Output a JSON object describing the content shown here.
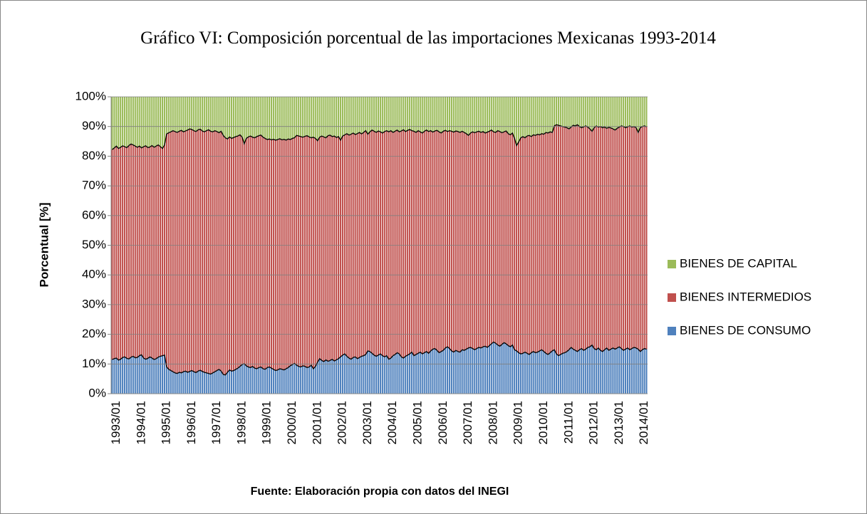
{
  "chart_data": {
    "type": "stacked_bar",
    "title": "Gráfico VI: Composición porcentual de las importaciones Mexicanas 1993-2014",
    "y_label": "Porcentual [%]",
    "x_label": "Fuente: Elaboración propia con datos del INEGI",
    "ylim": [
      0,
      100
    ],
    "yticks": [
      {
        "value": 0,
        "label": "0%"
      },
      {
        "value": 10,
        "label": "10%"
      },
      {
        "value": 20,
        "label": "20%"
      },
      {
        "value": 30,
        "label": "30%"
      },
      {
        "value": 40,
        "label": "40%"
      },
      {
        "value": 50,
        "label": "50%"
      },
      {
        "value": 60,
        "label": "60%"
      },
      {
        "value": 70,
        "label": "70%"
      },
      {
        "value": 80,
        "label": "80%"
      },
      {
        "value": 90,
        "label": "90%"
      },
      {
        "value": 100,
        "label": "100%"
      }
    ],
    "grid": true,
    "legend": "right",
    "categories": [
      "1993/01",
      null,
      null,
      null,
      null,
      null,
      null,
      null,
      null,
      null,
      null,
      null,
      "1994/01",
      null,
      null,
      null,
      null,
      null,
      null,
      null,
      null,
      null,
      null,
      null,
      "1995/01",
      null,
      null,
      null,
      null,
      null,
      null,
      null,
      null,
      null,
      null,
      null,
      "1996/01",
      null,
      null,
      null,
      null,
      null,
      null,
      null,
      null,
      null,
      null,
      null,
      "1997/01",
      null,
      null,
      null,
      null,
      null,
      null,
      null,
      null,
      null,
      null,
      null,
      "1998/01",
      null,
      null,
      null,
      null,
      null,
      null,
      null,
      null,
      null,
      null,
      null,
      "1999/01",
      null,
      null,
      null,
      null,
      null,
      null,
      null,
      null,
      null,
      null,
      null,
      "2000/01",
      null,
      null,
      null,
      null,
      null,
      null,
      null,
      null,
      null,
      null,
      null,
      "2001/01",
      null,
      null,
      null,
      null,
      null,
      null,
      null,
      null,
      null,
      null,
      null,
      "2002/01",
      null,
      null,
      null,
      null,
      null,
      null,
      null,
      null,
      null,
      null,
      null,
      "2003/01",
      null,
      null,
      null,
      null,
      null,
      null,
      null,
      null,
      null,
      null,
      null,
      "2004/01",
      null,
      null,
      null,
      null,
      null,
      null,
      null,
      null,
      null,
      null,
      null,
      "2005/01",
      null,
      null,
      null,
      null,
      null,
      null,
      null,
      null,
      null,
      null,
      null,
      "2006/01",
      null,
      null,
      null,
      null,
      null,
      null,
      null,
      null,
      null,
      null,
      null,
      "2007/01",
      null,
      null,
      null,
      null,
      null,
      null,
      null,
      null,
      null,
      null,
      null,
      "2008/01",
      null,
      null,
      null,
      null,
      null,
      null,
      null,
      null,
      null,
      null,
      null,
      "2009/01",
      null,
      null,
      null,
      null,
      null,
      null,
      null,
      null,
      null,
      null,
      null,
      "2010/01",
      null,
      null,
      null,
      null,
      null,
      null,
      null,
      null,
      null,
      null,
      null,
      "2011/01",
      null,
      null,
      null,
      null,
      null,
      null,
      null,
      null,
      null,
      null,
      null,
      "2012/01",
      null,
      null,
      null,
      null,
      null,
      null,
      null,
      null,
      null,
      null,
      null,
      "2013/01",
      null,
      null,
      null,
      null,
      null,
      null,
      null,
      null,
      null,
      null,
      null,
      "2014/01",
      null,
      null,
      null
    ],
    "series": [
      {
        "name": "BIENES DE CONSUMO",
        "color": "#4f81bd",
        "values": [
          11.5,
          11.8,
          12.0,
          11.3,
          11.6,
          12.2,
          12.4,
          11.9,
          11.7,
          12.3,
          12.6,
          12.1,
          12.2,
          12.8,
          13.1,
          12.0,
          11.6,
          11.9,
          12.4,
          12.0,
          11.5,
          11.8,
          12.3,
          12.6,
          12.8,
          13.0,
          9.0,
          8.2,
          7.8,
          7.4,
          7.0,
          6.8,
          7.2,
          7.0,
          7.4,
          7.6,
          7.2,
          7.5,
          7.8,
          7.4,
          7.1,
          7.6,
          7.9,
          7.5,
          7.2,
          7.0,
          6.8,
          6.6,
          7.0,
          7.4,
          7.8,
          8.2,
          7.6,
          6.5,
          6.3,
          7.2,
          8.0,
          7.6,
          7.8,
          8.2,
          8.6,
          9.2,
          9.8,
          10.1,
          9.4,
          9.0,
          8.8,
          9.2,
          8.6,
          8.4,
          8.8,
          9.0,
          8.4,
          8.2,
          8.8,
          9.0,
          8.6,
          8.2,
          7.8,
          8.0,
          8.4,
          8.2,
          8.0,
          8.4,
          8.8,
          9.4,
          9.8,
          10.2,
          9.6,
          9.2,
          9.0,
          9.4,
          9.2,
          8.8,
          9.0,
          9.6,
          8.4,
          9.2,
          10.6,
          11.8,
          11.2,
          10.8,
          11.4,
          10.9,
          11.2,
          11.6,
          11.0,
          11.4,
          11.8,
          12.4,
          13.0,
          13.4,
          12.6,
          12.0,
          11.6,
          12.2,
          12.4,
          11.8,
          12.2,
          12.6,
          12.8,
          13.2,
          14.4,
          14.2,
          13.6,
          13.0,
          12.6,
          13.0,
          13.4,
          12.8,
          12.4,
          12.8,
          11.6,
          12.0,
          12.8,
          13.2,
          13.8,
          13.4,
          12.4,
          12.0,
          12.6,
          13.0,
          13.4,
          14.0,
          12.8,
          13.2,
          13.6,
          14.0,
          13.4,
          13.8,
          14.2,
          13.6,
          14.4,
          15.0,
          15.2,
          14.6,
          13.8,
          14.2,
          14.6,
          15.4,
          15.8,
          15.2,
          14.4,
          14.0,
          14.6,
          14.2,
          14.0,
          14.8,
          14.6,
          15.0,
          15.4,
          15.6,
          15.2,
          14.8,
          15.2,
          15.6,
          15.4,
          15.8,
          16.0,
          15.6,
          16.2,
          16.8,
          17.4,
          17.0,
          16.4,
          16.0,
          16.6,
          17.2,
          16.8,
          16.2,
          15.8,
          16.4,
          14.8,
          14.4,
          13.8,
          13.4,
          13.6,
          14.0,
          13.6,
          13.2,
          13.8,
          14.2,
          13.8,
          14.0,
          14.4,
          14.8,
          14.2,
          13.6,
          13.2,
          13.8,
          14.4,
          14.8,
          13.4,
          12.8,
          13.2,
          13.6,
          13.8,
          14.2,
          14.8,
          15.6,
          15.0,
          14.6,
          14.2,
          14.8,
          15.2,
          14.6,
          15.0,
          15.6,
          15.8,
          16.4,
          15.2,
          14.8,
          15.4,
          14.6,
          14.2,
          14.8,
          15.4,
          14.6,
          15.0,
          15.4,
          15.0,
          15.4,
          15.8,
          15.2,
          14.6,
          15.0,
          15.4,
          14.8,
          15.2,
          15.6,
          15.4,
          15.0,
          14.2,
          14.8,
          15.2,
          15.0
        ]
      },
      {
        "name": "BIENES INTERMEDIOS",
        "color": "#c0504d",
        "values": [
          70.7,
          71.0,
          71.4,
          71.3,
          71.4,
          71.3,
          70.8,
          71.0,
          71.9,
          71.8,
          71.2,
          71.3,
          70.8,
          70.6,
          69.7,
          71.2,
          71.9,
          71.0,
          70.7,
          71.6,
          71.5,
          71.6,
          71.5,
          70.6,
          69.8,
          70.8,
          78.5,
          79.7,
          80.4,
          81.2,
          81.3,
          81.2,
          81.2,
          81.7,
          80.8,
          80.9,
          81.6,
          81.7,
          81.2,
          81.2,
          81.2,
          81.3,
          81.2,
          81.0,
          81.0,
          81.6,
          82.1,
          81.8,
          81.2,
          81.2,
          80.5,
          79.7,
          80.8,
          80.5,
          79.9,
          78.6,
          78.5,
          78.4,
          78.5,
          78.4,
          78.2,
          78.0,
          76.6,
          74.1,
          76.6,
          77.5,
          78.0,
          77.2,
          77.6,
          78.2,
          78.1,
          78.1,
          78.0,
          77.8,
          76.8,
          76.8,
          76.9,
          77.5,
          77.6,
          77.6,
          77.5,
          77.3,
          77.7,
          77.0,
          77.0,
          76.2,
          76.2,
          76.0,
          77.4,
          77.6,
          77.6,
          77.0,
          77.5,
          78.1,
          77.5,
          76.6,
          78.0,
          76.8,
          74.6,
          74.6,
          75.6,
          75.7,
          74.8,
          76.0,
          75.9,
          75.0,
          75.8,
          74.9,
          74.8,
          73.0,
          73.8,
          73.8,
          75.0,
          75.1,
          75.8,
          75.6,
          74.9,
          75.8,
          75.8,
          74.9,
          75.2,
          75.4,
          73.0,
          74.0,
          75.2,
          75.4,
          75.4,
          75.5,
          74.8,
          75.0,
          75.9,
          75.8,
          76.6,
          76.6,
          75.2,
          75.2,
          75.0,
          74.8,
          76.1,
          76.9,
          75.7,
          75.7,
          75.6,
          74.6,
          75.6,
          74.8,
          75.0,
          74.2,
          74.4,
          74.6,
          74.6,
          74.7,
          74.2,
          73.1,
          73.3,
          74.1,
          74.4,
          73.6,
          73.8,
          73.3,
          72.5,
          73.4,
          74.0,
          74.1,
          73.9,
          74.1,
          74.0,
          73.6,
          73.4,
          72.6,
          71.6,
          72.2,
          73.0,
          73.1,
          73.0,
          72.8,
          72.6,
          72.5,
          71.8,
          72.5,
          72.2,
          72.0,
          70.8,
          71.0,
          72.2,
          72.3,
          71.3,
          71.0,
          71.7,
          71.4,
          71.4,
          71.4,
          71.2,
          69.2,
          71.0,
          72.8,
          73.0,
          72.2,
          73.2,
          73.8,
          72.8,
          73.0,
          73.2,
          73.4,
          72.8,
          72.8,
          73.2,
          74.4,
          74.6,
          74.4,
          73.6,
          75.4,
          77.2,
          77.6,
          77.0,
          76.4,
          76.0,
          75.4,
          74.4,
          74.2,
          75.4,
          75.6,
          76.4,
          75.2,
          74.4,
          75.3,
          75.2,
          74.2,
          73.4,
          72.0,
          74.4,
          75.4,
          74.4,
          75.4,
          75.4,
          75.0,
          74.0,
          75.1,
          74.5,
          73.8,
          73.8,
          74.0,
          74.0,
          75.0,
          75.4,
          74.6,
          74.5,
          75.4,
          74.6,
          74.4,
          74.2,
          73.0,
          75.4,
          75.2,
          75.0,
          74.9
        ]
      },
      {
        "name": "BIENES DE CAPITAL",
        "color": "#9bbb59",
        "values": [
          17.8,
          17.2,
          16.6,
          17.4,
          17.0,
          16.5,
          16.8,
          17.1,
          16.4,
          15.9,
          16.2,
          16.6,
          17.0,
          16.6,
          17.2,
          16.8,
          16.5,
          17.1,
          16.9,
          16.4,
          17.0,
          16.6,
          16.2,
          16.8,
          17.4,
          16.2,
          12.5,
          12.1,
          11.8,
          11.4,
          11.7,
          12.0,
          11.6,
          11.3,
          11.8,
          11.5,
          11.2,
          10.8,
          11.0,
          11.4,
          11.7,
          11.1,
          10.9,
          11.5,
          11.8,
          11.4,
          11.1,
          11.6,
          11.8,
          11.4,
          11.7,
          12.1,
          11.6,
          13.0,
          13.8,
          14.2,
          13.5,
          14.0,
          13.7,
          13.4,
          13.2,
          12.8,
          13.6,
          15.8,
          14.0,
          13.5,
          13.2,
          13.6,
          13.8,
          13.4,
          13.1,
          12.9,
          13.6,
          14.0,
          14.4,
          14.2,
          14.5,
          14.3,
          14.6,
          14.4,
          14.1,
          14.5,
          14.3,
          14.6,
          14.2,
          14.4,
          14.0,
          13.8,
          13.0,
          13.2,
          13.4,
          13.6,
          13.3,
          13.1,
          13.5,
          13.8,
          13.6,
          14.0,
          14.8,
          13.6,
          13.2,
          13.5,
          13.8,
          13.1,
          12.9,
          13.4,
          13.2,
          13.7,
          13.4,
          14.6,
          13.2,
          12.8,
          12.4,
          12.9,
          12.6,
          12.2,
          12.7,
          12.4,
          12.0,
          12.5,
          12.0,
          11.4,
          12.6,
          11.8,
          11.2,
          11.6,
          12.0,
          11.5,
          11.8,
          12.2,
          11.7,
          11.4,
          11.8,
          11.4,
          12.0,
          11.6,
          11.2,
          11.8,
          11.5,
          11.1,
          11.7,
          11.3,
          11.0,
          11.4,
          11.6,
          12.0,
          11.4,
          11.8,
          12.2,
          11.6,
          11.2,
          11.7,
          11.4,
          11.9,
          11.5,
          11.3,
          11.8,
          12.2,
          11.6,
          11.3,
          11.7,
          11.4,
          11.6,
          11.9,
          11.5,
          11.7,
          12.0,
          11.6,
          12.0,
          12.4,
          13.0,
          12.2,
          11.8,
          12.1,
          11.8,
          11.6,
          12.0,
          11.7,
          12.2,
          11.9,
          11.6,
          11.2,
          11.8,
          12.0,
          11.4,
          11.7,
          12.1,
          11.8,
          11.5,
          12.4,
          12.8,
          12.2,
          14.0,
          16.4,
          15.2,
          13.8,
          13.4,
          13.8,
          13.2,
          13.0,
          13.4,
          12.8,
          13.0,
          12.6,
          12.8,
          12.4,
          12.6,
          12.0,
          12.2,
          11.8,
          12.0,
          9.8,
          9.4,
          9.6,
          9.8,
          10.0,
          10.2,
          10.4,
          10.8,
          10.2,
          9.6,
          9.8,
          9.4,
          10.0,
          10.4,
          10.1,
          9.8,
          10.2,
          10.8,
          11.6,
          10.4,
          9.8,
          10.2,
          10.0,
          10.4,
          10.2,
          10.6,
          10.3,
          10.5,
          10.8,
          11.2,
          10.6,
          10.2,
          9.8,
          10.0,
          10.4,
          10.1,
          9.8,
          10.2,
          10.0,
          10.4,
          12.0,
          10.4,
          10.0,
          9.8,
          10.1
        ]
      }
    ]
  }
}
